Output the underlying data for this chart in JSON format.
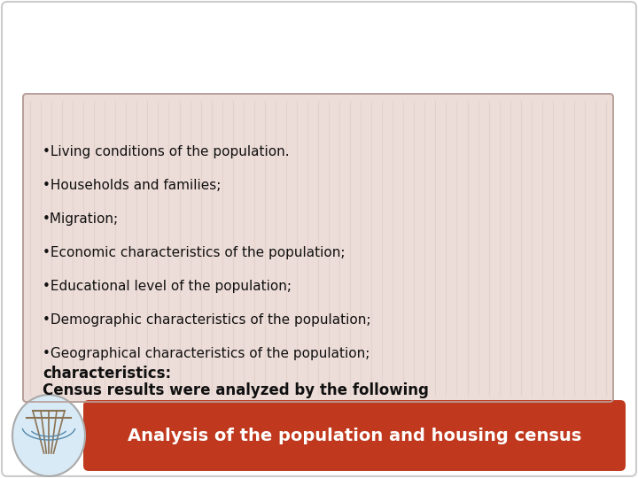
{
  "title": "Analysis of the population and housing census",
  "title_color": "#ffffff",
  "title_bg_color": "#c0391e",
  "bg_color": "#ffffff",
  "outer_border_color": "#cccccc",
  "card_bg_color": "#edddd8",
  "card_border_color": "#b8a09a",
  "bold_line1": "Census results were analyzed by the following",
  "bold_line2": "characteristics:",
  "bullet_items": [
    "•Geographical characteristics of the population;",
    "•Demographic characteristics of the population;",
    "•Educational level of the population;",
    "•Economic characteristics of the population;",
    "•Migration;",
    "•Households and families;",
    "•Living conditions of the population."
  ],
  "text_color": "#111111",
  "figsize": [
    7.2,
    5.4
  ],
  "dpi": 100,
  "stripe_color": "#e0ccc8",
  "logo_bg": "#d8eaf5",
  "logo_border": "#aaaaaa"
}
